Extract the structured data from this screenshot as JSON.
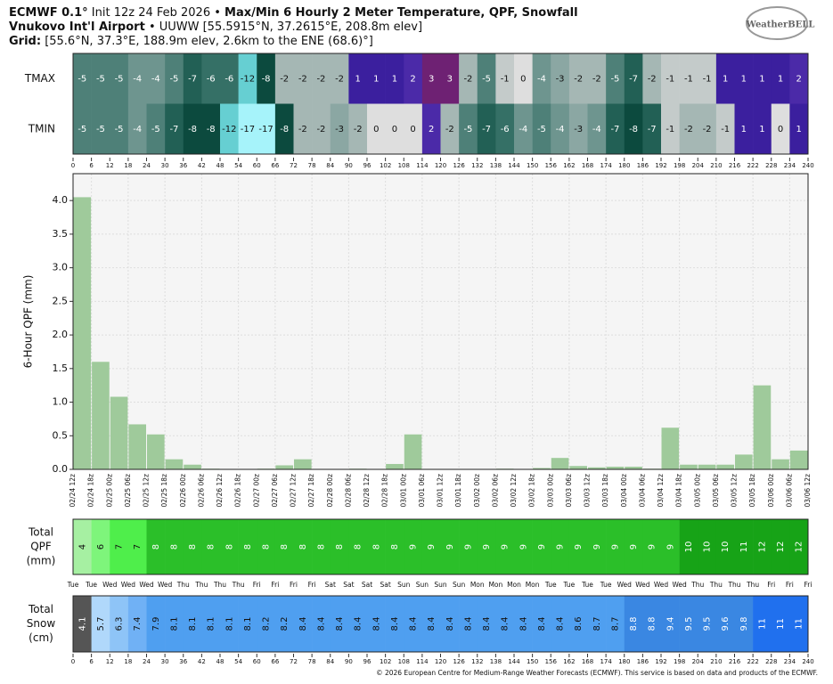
{
  "header": {
    "line1_bold": "ECMWF 0.1°",
    "line1_rest": "Init 12z 24 Feb 2026 •",
    "line1_bold2": "Max/Min 6 Hourly 2 Meter Temperature, QPF, Snowfall",
    "line2_bold": "Vnukovo Int'l Airport",
    "line2_rest": "• UUWW [55.5915°N, 37.2615°E, 208.8m elev]",
    "line3_bold": "Grid:",
    "line3_rest": "[55.6°N, 37.3°E, 188.9m elev, 2.6km to the ENE (68.6)°]",
    "logo": "WeatherBELL"
  },
  "chart_data": [
    {
      "type": "temperature",
      "rows": [
        {
          "name": "TMAX",
          "values": [
            -5,
            -5,
            -5,
            -4,
            -4,
            -5,
            -7,
            -6,
            -6,
            -12,
            -8,
            -2,
            -2,
            -2,
            -2,
            1,
            1,
            1,
            2,
            3,
            3,
            -2,
            -5,
            -1,
            0,
            -4,
            -3,
            -2,
            -2,
            -5,
            -7,
            -2,
            -1,
            -1,
            -1,
            1,
            1,
            1,
            1,
            2
          ]
        },
        {
          "name": "TMIN",
          "values": [
            -5,
            -5,
            -5,
            -4,
            -5,
            -7,
            -8,
            -8,
            -12,
            -17,
            -17,
            -8,
            -2,
            -2,
            -3,
            -2,
            0,
            0,
            0,
            2,
            -2,
            -5,
            -7,
            -6,
            -4,
            -5,
            -4,
            -3,
            -4,
            -7,
            -8,
            -7,
            -1,
            -2,
            -2,
            -1,
            1,
            1,
            0,
            1
          ]
        }
      ],
      "xlim": [
        0,
        240
      ],
      "xticks": [
        0,
        6,
        12,
        18,
        24,
        30,
        36,
        42,
        48,
        54,
        60,
        66,
        72,
        78,
        84,
        90,
        96,
        102,
        108,
        114,
        120,
        126,
        132,
        138,
        144,
        150,
        156,
        162,
        168,
        174,
        180,
        186,
        192,
        198,
        204,
        210,
        216,
        222,
        228,
        234,
        240
      ]
    },
    {
      "type": "bar",
      "ylabel": "6-Hour QPF (mm)",
      "xtick_labels": [
        "02/24 12z",
        "02/24 18z",
        "02/25 00z",
        "02/25 06z",
        "02/25 12z",
        "02/25 18z",
        "02/26 00z",
        "02/26 06z",
        "02/26 12z",
        "02/26 18z",
        "02/27 00z",
        "02/27 06z",
        "02/27 12z",
        "02/27 18z",
        "02/28 00z",
        "02/28 06z",
        "02/28 12z",
        "02/28 18z",
        "03/01 00z",
        "03/01 06z",
        "03/01 12z",
        "03/01 18z",
        "03/02 00z",
        "03/02 06z",
        "03/02 12z",
        "03/02 18z",
        "03/03 00z",
        "03/03 06z",
        "03/03 12z",
        "03/03 18z",
        "03/04 00z",
        "03/04 06z",
        "03/04 12z",
        "03/04 18z",
        "03/05 00z",
        "03/05 06z",
        "03/05 12z",
        "03/05 18z",
        "03/06 00z",
        "03/06 06z",
        "03/06 12z"
      ],
      "values": [
        4.05,
        1.6,
        1.08,
        0.67,
        0.52,
        0.15,
        0.07,
        0.01,
        0,
        0,
        0.01,
        0.06,
        0.15,
        0,
        0,
        0.01,
        0,
        0.08,
        0.52,
        0,
        0,
        0,
        0,
        0.01,
        0,
        0.02,
        0.17,
        0.05,
        0.03,
        0.04,
        0.04,
        0.01,
        0.62,
        0.07,
        0.07,
        0.07,
        0.22,
        1.25,
        0.15,
        0.28
      ],
      "color": "#9fca9b",
      "ylim": [
        0,
        4.4
      ],
      "yticks": [
        {
          "value": 0,
          "label": "0.0"
        },
        {
          "value": 0.5,
          "label": "0.5"
        },
        {
          "value": 1,
          "label": "1.0"
        },
        {
          "value": 1.5,
          "label": "1.5"
        },
        {
          "value": 2,
          "label": "2.0"
        },
        {
          "value": 2.5,
          "label": "2.5"
        },
        {
          "value": 3,
          "label": "3.0"
        },
        {
          "value": 3.5,
          "label": "3.5"
        },
        {
          "value": 4,
          "label": "4.0"
        }
      ],
      "grid": true
    },
    {
      "type": "qpf_total",
      "ylabel": [
        "Total",
        "QPF",
        "(mm)"
      ],
      "values": [
        4,
        6,
        7,
        7,
        8,
        8,
        8,
        8,
        8,
        8,
        8,
        8,
        8,
        8,
        8,
        8,
        8,
        8,
        9,
        9,
        9,
        9,
        9,
        9,
        9,
        9,
        9,
        9,
        9,
        9,
        9,
        9,
        9,
        10,
        10,
        10,
        11,
        12,
        12,
        12
      ],
      "xtick_labels": [
        "Tue",
        "Tue",
        "Wed",
        "Wed",
        "Wed",
        "Wed",
        "Thu",
        "Thu",
        "Thu",
        "Thu",
        "Fri",
        "Fri",
        "Fri",
        "Fri",
        "Sat",
        "Sat",
        "Sat",
        "Sat",
        "Sun",
        "Sun",
        "Sun",
        "Sun",
        "Mon",
        "Mon",
        "Mon",
        "Mon",
        "Tue",
        "Tue",
        "Tue",
        "Tue",
        "Wed",
        "Wed",
        "Wed",
        "Wed",
        "Thu",
        "Thu",
        "Thu",
        "Thu",
        "Fri",
        "Fri",
        "Fri"
      ]
    },
    {
      "type": "snow_total",
      "ylabel": [
        "Total",
        "Snow",
        "(cm)"
      ],
      "values": [
        4.1,
        5.7,
        6.3,
        7.4,
        7.9,
        8.1,
        8.1,
        8.1,
        8.1,
        8.1,
        8.2,
        8.2,
        8.4,
        8.4,
        8.4,
        8.4,
        8.4,
        8.4,
        8.4,
        8.4,
        8.4,
        8.4,
        8.4,
        8.4,
        8.4,
        8.4,
        8.4,
        8.6,
        8.7,
        8.7,
        8.8,
        8.8,
        9.4,
        9.5,
        9.5,
        9.6,
        9.8,
        11,
        11,
        11
      ],
      "xlim": [
        0,
        240
      ],
      "xticks": [
        0,
        6,
        12,
        18,
        24,
        30,
        36,
        42,
        48,
        54,
        60,
        66,
        72,
        78,
        84,
        90,
        96,
        102,
        108,
        114,
        120,
        126,
        132,
        138,
        144,
        150,
        156,
        162,
        168,
        174,
        180,
        186,
        192,
        198,
        204,
        210,
        216,
        222,
        228,
        234,
        240
      ]
    }
  ],
  "footer": "© 2026 European Centre for Medium-Range Weather Forecasts (ECMWF). This service is based on data and products of the ECMWF."
}
